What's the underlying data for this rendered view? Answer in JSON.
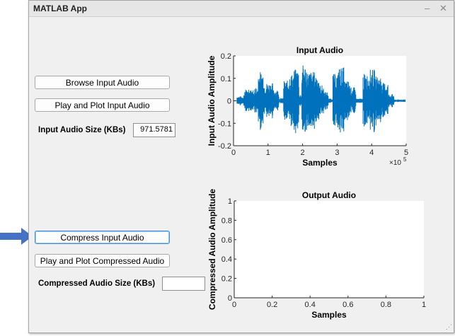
{
  "window": {
    "title": "MATLAB App",
    "minimize_icon": "minimize-icon",
    "close_icon": "close-icon"
  },
  "controls": {
    "browse_label": "Browse Input Audio",
    "play_input_label": "Play and Plot Input Audio",
    "input_size_label": "Input Audio Size (KBs)",
    "input_size_value": "971.5781",
    "compress_label": "Compress Input Audio",
    "play_compressed_label": "Play and Plot Compressed Audio",
    "compressed_size_label": "Compressed Audio Size (KBs)",
    "compressed_size_value": ""
  },
  "pointer": {
    "icon": "arrow-pointer-icon",
    "color": "#4472c4"
  },
  "chart_data": [
    {
      "type": "line",
      "title": "Input Audio",
      "xlabel": "Samples",
      "ylabel": "Input Audio Amplitude",
      "xlim": [
        0,
        500000
      ],
      "ylim": [
        -0.2,
        0.2
      ],
      "x_ticks": [
        "0",
        "1",
        "2",
        "3",
        "4",
        "5"
      ],
      "x_exponent_label": "×10",
      "x_exponent_power": "5",
      "y_ticks": [
        "-0.2",
        "-0.1",
        "0",
        "0.1",
        "0.2"
      ],
      "color": "#0072bd",
      "segments": [
        {
          "x_start": 10000,
          "x_end": 60000,
          "amp": 0.02
        },
        {
          "x_start": 30000,
          "x_end": 55000,
          "amp": 0.045
        },
        {
          "x_start": 35000,
          "x_end": 60000,
          "amp": 0.05
        },
        {
          "x_start": 40000,
          "x_end": 55000,
          "amp": 0.04
        },
        {
          "x_start": 55000,
          "x_end": 60000,
          "amp": 0.01
        },
        {
          "x_start": 60000,
          "x_end": 72000,
          "amp": 0.06
        },
        {
          "x_start": 72000,
          "x_end": 88000,
          "amp": 0.13
        },
        {
          "x_start": 88000,
          "x_end": 115000,
          "amp": 0.08
        },
        {
          "x_start": 115000,
          "x_end": 132000,
          "amp": 0.05
        },
        {
          "x_start": 132000,
          "x_end": 145000,
          "amp": 0.012
        },
        {
          "x_start": 145000,
          "x_end": 160000,
          "amp": 0.09
        },
        {
          "x_start": 160000,
          "x_end": 175000,
          "amp": 0.12
        },
        {
          "x_start": 175000,
          "x_end": 190000,
          "amp": 0.14
        },
        {
          "x_start": 190000,
          "x_end": 198000,
          "amp": 0.03
        },
        {
          "x_start": 198000,
          "x_end": 212000,
          "amp": 0.16
        },
        {
          "x_start": 212000,
          "x_end": 235000,
          "amp": 0.13
        },
        {
          "x_start": 235000,
          "x_end": 248000,
          "amp": 0.12
        },
        {
          "x_start": 248000,
          "x_end": 262000,
          "amp": 0.07
        },
        {
          "x_start": 262000,
          "x_end": 275000,
          "amp": 0.04
        },
        {
          "x_start": 275000,
          "x_end": 288000,
          "amp": 0.01
        },
        {
          "x_start": 288000,
          "x_end": 303000,
          "amp": 0.12
        },
        {
          "x_start": 303000,
          "x_end": 320000,
          "amp": 0.15
        },
        {
          "x_start": 320000,
          "x_end": 338000,
          "amp": 0.09
        },
        {
          "x_start": 338000,
          "x_end": 355000,
          "amp": 0.06
        },
        {
          "x_start": 355000,
          "x_end": 375000,
          "amp": 0.01
        },
        {
          "x_start": 375000,
          "x_end": 392000,
          "amp": 0.12
        },
        {
          "x_start": 392000,
          "x_end": 410000,
          "amp": 0.14
        },
        {
          "x_start": 410000,
          "x_end": 430000,
          "amp": 0.11
        },
        {
          "x_start": 430000,
          "x_end": 448000,
          "amp": 0.08
        },
        {
          "x_start": 448000,
          "x_end": 465000,
          "amp": 0.03
        },
        {
          "x_start": 465000,
          "x_end": 498000,
          "amp": 0.006
        }
      ]
    },
    {
      "type": "line",
      "title": "Output Audio",
      "xlabel": "Samples",
      "ylabel": "Compressed Audio Amplitude",
      "xlim": [
        0,
        1
      ],
      "ylim": [
        0,
        1
      ],
      "x_ticks": [
        "0",
        "0.2",
        "0.4",
        "0.6",
        "0.8",
        "1"
      ],
      "y_ticks": [
        "0",
        "0.2",
        "0.4",
        "0.6",
        "0.8",
        "1"
      ],
      "series": []
    }
  ]
}
